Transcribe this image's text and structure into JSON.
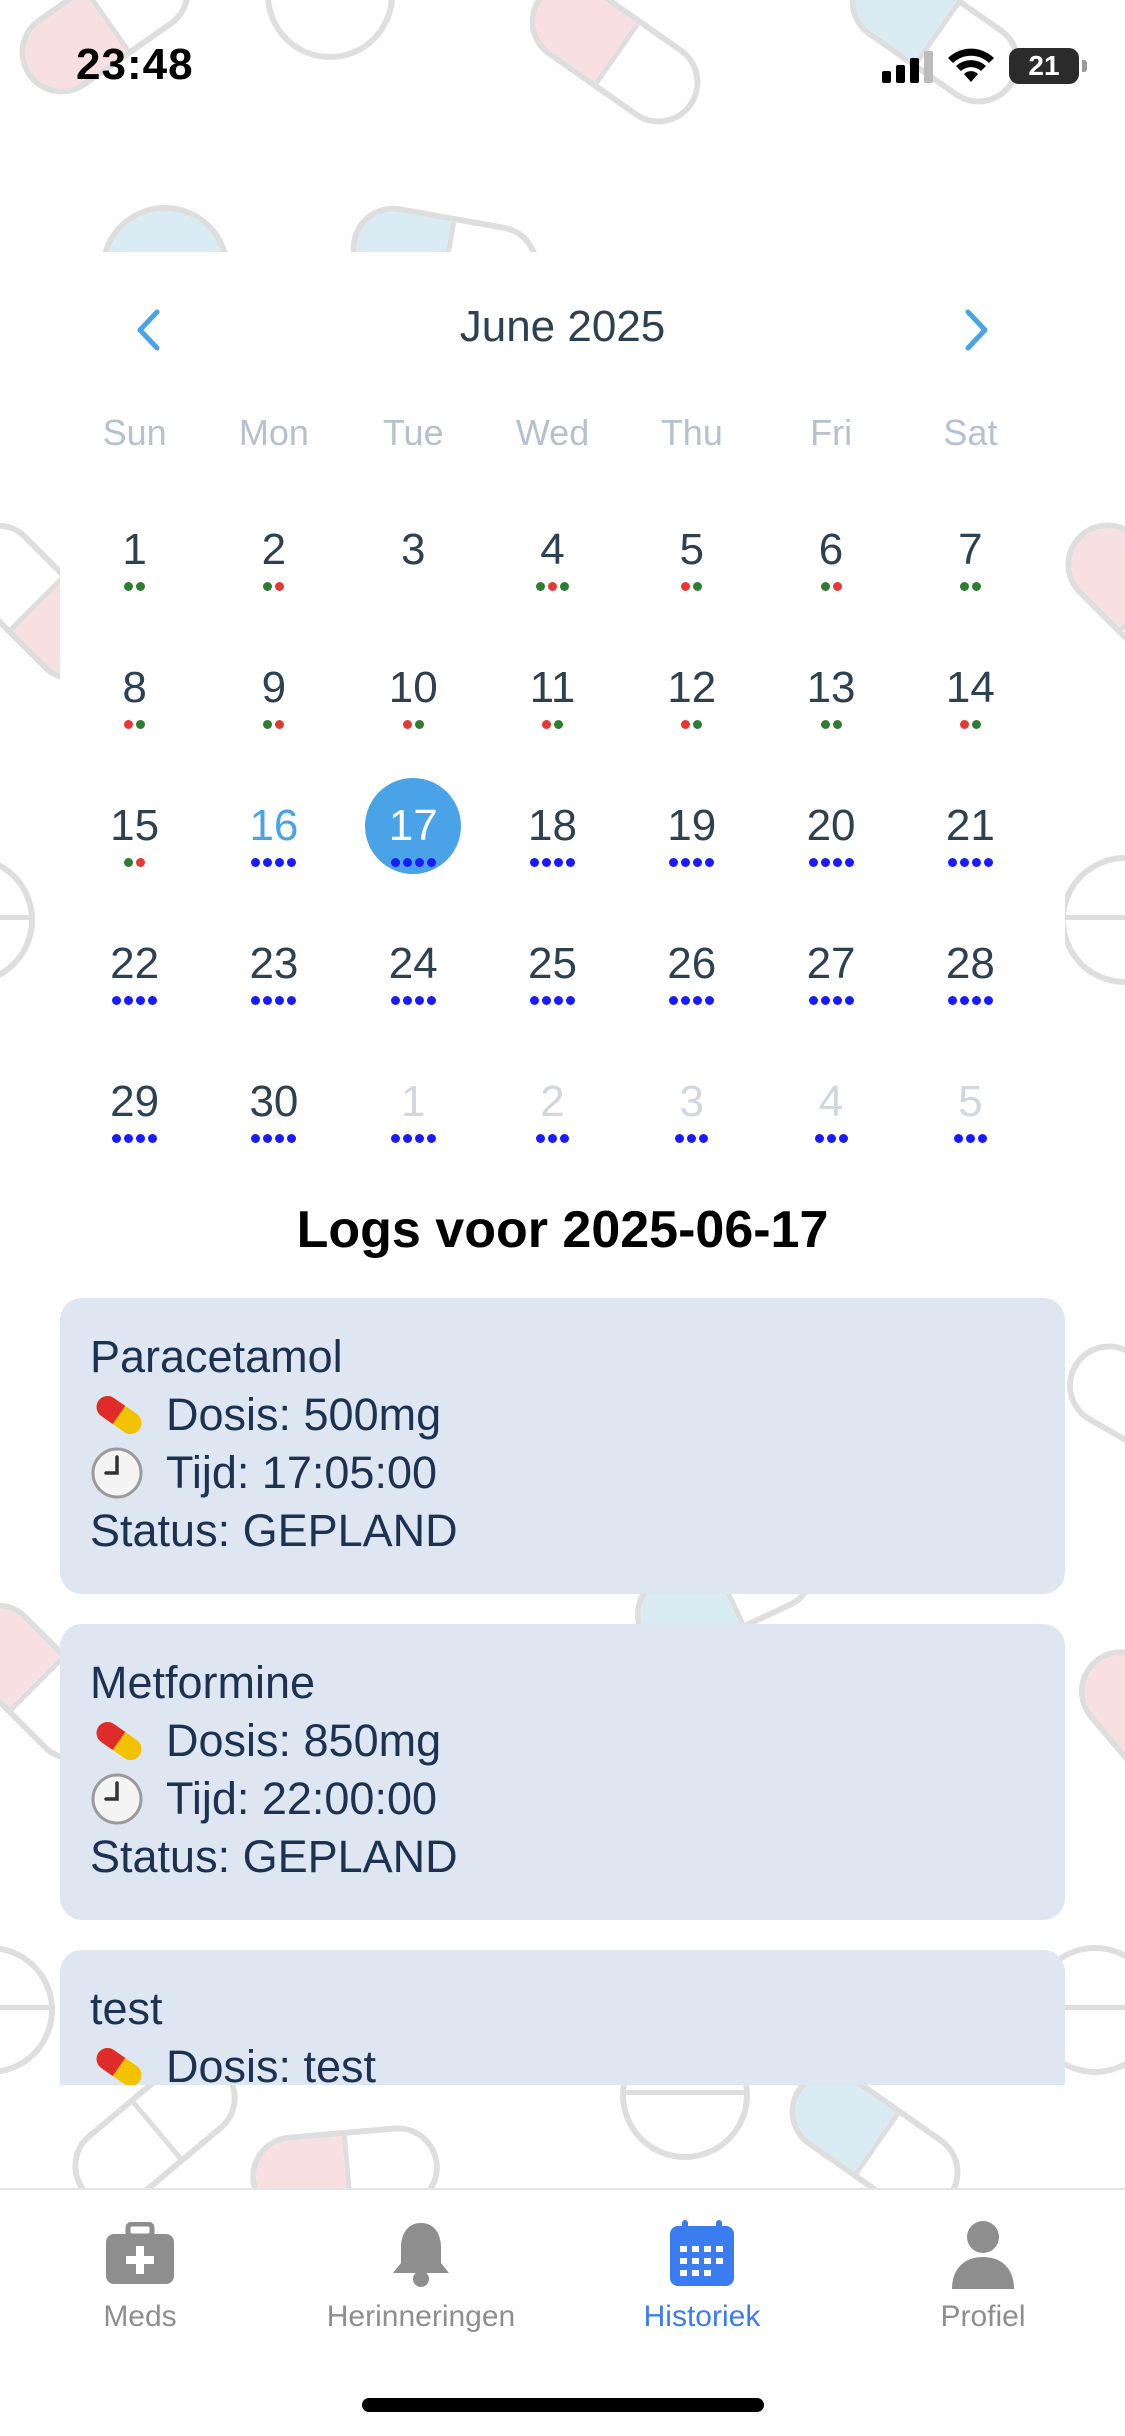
{
  "status_bar": {
    "time": "23:48",
    "battery": "21"
  },
  "calendar": {
    "month_title": "June 2025",
    "weekdays": [
      "Sun",
      "Mon",
      "Tue",
      "Wed",
      "Thu",
      "Fri",
      "Sat"
    ],
    "colors": {
      "green": "#2e7d32",
      "red": "#e53935",
      "blue": "#1a1aff",
      "accent": "#4aa3e6"
    },
    "weeks": [
      [
        {
          "label": "1",
          "dots": [
            "green",
            "green"
          ]
        },
        {
          "label": "2",
          "dots": [
            "green",
            "red"
          ]
        },
        {
          "label": "3",
          "dots": []
        },
        {
          "label": "4",
          "dots": [
            "green",
            "red",
            "green"
          ]
        },
        {
          "label": "5",
          "dots": [
            "red",
            "green"
          ]
        },
        {
          "label": "6",
          "dots": [
            "green",
            "red"
          ]
        },
        {
          "label": "7",
          "dots": [
            "green",
            "green"
          ]
        }
      ],
      [
        {
          "label": "8",
          "dots": [
            "red",
            "green"
          ]
        },
        {
          "label": "9",
          "dots": [
            "green",
            "red"
          ]
        },
        {
          "label": "10",
          "dots": [
            "red",
            "green"
          ]
        },
        {
          "label": "11",
          "dots": [
            "red",
            "green"
          ]
        },
        {
          "label": "12",
          "dots": [
            "red",
            "green"
          ]
        },
        {
          "label": "13",
          "dots": [
            "green",
            "green"
          ]
        },
        {
          "label": "14",
          "dots": [
            "red",
            "green"
          ]
        }
      ],
      [
        {
          "label": "15",
          "dots": [
            "green",
            "red"
          ]
        },
        {
          "label": "16",
          "dots": [
            "blue",
            "blue",
            "blue",
            "blue"
          ],
          "state": "today"
        },
        {
          "label": "17",
          "dots": [
            "blue",
            "blue",
            "blue",
            "blue"
          ],
          "state": "selected"
        },
        {
          "label": "18",
          "dots": [
            "blue",
            "blue",
            "blue",
            "blue"
          ]
        },
        {
          "label": "19",
          "dots": [
            "blue",
            "blue",
            "blue",
            "blue"
          ]
        },
        {
          "label": "20",
          "dots": [
            "blue",
            "blue",
            "blue",
            "blue"
          ]
        },
        {
          "label": "21",
          "dots": [
            "blue",
            "blue",
            "blue",
            "blue"
          ]
        }
      ],
      [
        {
          "label": "22",
          "dots": [
            "blue",
            "blue",
            "blue",
            "blue"
          ]
        },
        {
          "label": "23",
          "dots": [
            "blue",
            "blue",
            "blue",
            "blue"
          ]
        },
        {
          "label": "24",
          "dots": [
            "blue",
            "blue",
            "blue",
            "blue"
          ]
        },
        {
          "label": "25",
          "dots": [
            "blue",
            "blue",
            "blue",
            "blue"
          ]
        },
        {
          "label": "26",
          "dots": [
            "blue",
            "blue",
            "blue",
            "blue"
          ]
        },
        {
          "label": "27",
          "dots": [
            "blue",
            "blue",
            "blue",
            "blue"
          ]
        },
        {
          "label": "28",
          "dots": [
            "blue",
            "blue",
            "blue",
            "blue"
          ]
        }
      ],
      [
        {
          "label": "29",
          "dots": [
            "blue",
            "blue",
            "blue",
            "blue"
          ]
        },
        {
          "label": "30",
          "dots": [
            "blue",
            "blue",
            "blue",
            "blue"
          ]
        },
        {
          "label": "1",
          "dots": [
            "blue",
            "blue",
            "blue",
            "blue"
          ],
          "state": "other"
        },
        {
          "label": "2",
          "dots": [
            "blue",
            "blue",
            "blue"
          ],
          "state": "other"
        },
        {
          "label": "3",
          "dots": [
            "blue",
            "blue",
            "blue"
          ],
          "state": "other"
        },
        {
          "label": "4",
          "dots": [
            "blue",
            "blue",
            "blue"
          ],
          "state": "other"
        },
        {
          "label": "5",
          "dots": [
            "blue",
            "blue",
            "blue"
          ],
          "state": "other"
        }
      ]
    ]
  },
  "logs": {
    "title": "Logs voor 2025-06-17",
    "entries": [
      {
        "name": "Paracetamol",
        "dose": "Dosis: 500mg",
        "time": "Tijd: 17:05:00",
        "status": "Status: GEPLAND"
      },
      {
        "name": "Metformine",
        "dose": "Dosis: 850mg",
        "time": "Tijd: 22:00:00",
        "status": "Status: GEPLAND"
      },
      {
        "name": "test",
        "dose": "Dosis: test",
        "time": "",
        "status": ""
      }
    ]
  },
  "tabs": [
    {
      "label": "Meds",
      "icon": "medkit-icon"
    },
    {
      "label": "Herinneringen",
      "icon": "bell-icon"
    },
    {
      "label": "Historiek",
      "icon": "calendar-icon",
      "active": true
    },
    {
      "label": "Profiel",
      "icon": "person-icon"
    }
  ]
}
